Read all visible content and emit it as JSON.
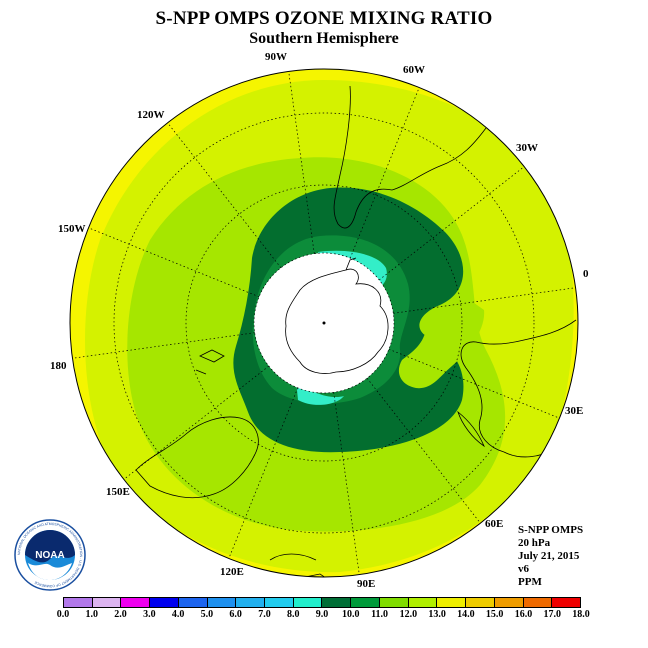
{
  "title": "S-NPP OMPS OZONE MIXING RATIO",
  "subtitle": "Southern Hemisphere",
  "meridian_labels": {
    "m90w": "90W",
    "m60w": "60W",
    "m30w": "30W",
    "m0": "0",
    "m30e": "30E",
    "m60e": "60E",
    "m90e": "90E",
    "m120e": "120E",
    "m150e": "150E",
    "m180": "180",
    "m150w": "150W",
    "m120w": "120W"
  },
  "info": {
    "line1": "S-NPP OMPS",
    "line2": "20 hPa",
    "line3": "July 21, 2015",
    "line4": "v6",
    "line5": "PPM"
  },
  "logo": {
    "text": "NOAA",
    "ring_text": "NATIONAL OCEANIC AND ATMOSPHERIC ADMINISTRATION · U.S. DEPARTMENT OF COMMERCE"
  },
  "colorbar": {
    "ticks": [
      "0.0",
      "1.0",
      "2.0",
      "3.0",
      "4.0",
      "5.0",
      "6.0",
      "7.0",
      "8.0",
      "9.0",
      "10.0",
      "11.0",
      "12.0",
      "13.0",
      "14.0",
      "15.0",
      "16.0",
      "17.0",
      "18.0"
    ],
    "colors": [
      "#b278ea",
      "#dcb4f0",
      "#ee00ee",
      "#0000ee",
      "#1c64ee",
      "#1e90ee",
      "#22b0ee",
      "#22ccee",
      "#22eecc",
      "#006e36",
      "#009a3a",
      "#80dc00",
      "#b0ee00",
      "#eeee00",
      "#eecc00",
      "#ee9c00",
      "#ee6a00",
      "#ee0000",
      "#8c5a3c"
    ]
  },
  "map_colors": {
    "outer": "#f5f500",
    "light": "#d4f200",
    "mid": "#a6e600",
    "dark_green": "#036e2f",
    "green": "#0c8c3a",
    "cyan": "#33eec8",
    "polar_cap": "#ffffff"
  }
}
